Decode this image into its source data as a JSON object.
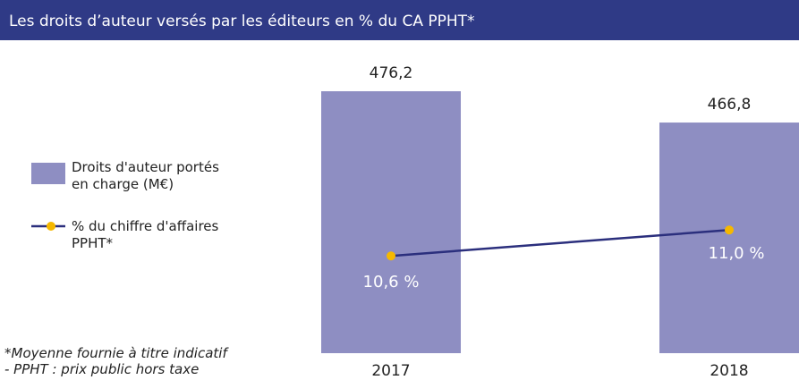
{
  "chart_data": {
    "type": "bar-line",
    "title": "Les droits d’auteur versés par les éditeurs en % du CA PPHT*",
    "categories": [
      "2017",
      "2018"
    ],
    "series": [
      {
        "name": "Droits d'auteur portés\nen charge (M€)",
        "color": "#8e8ec2",
        "values": [
          476.2,
          466.8
        ],
        "value_labels": [
          "476,2",
          "466,8"
        ]
      },
      {
        "name": "% du chiffre d'affaires\nPPHT*",
        "color": "#2b2f7d",
        "marker_color": "#f5b800",
        "axis": "y2",
        "values": [
          10.6,
          11.0
        ],
        "value_labels": [
          "10,6 %",
          "11,0 %"
        ]
      }
    ],
    "ylim": [
      397.5,
      487.5
    ],
    "y2lim": [
      9.1,
      13.72
    ],
    "legend": "left",
    "notes": [
      "*Moyenne fournie à titre indicatif",
      "- PPHT : prix public hors taxe"
    ]
  }
}
